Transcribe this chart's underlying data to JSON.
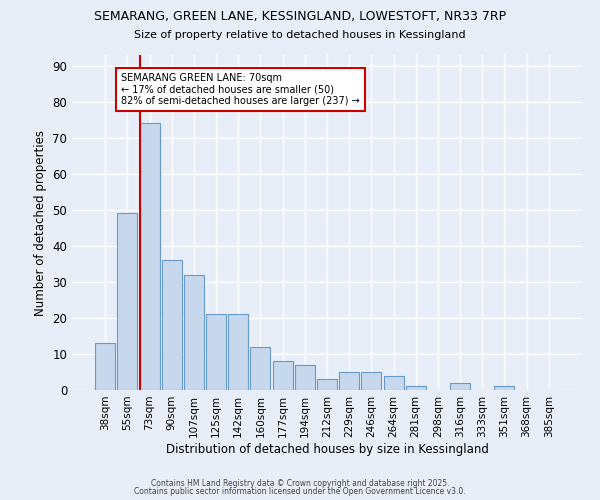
{
  "title_line1": "SEMARANG, GREEN LANE, KESSINGLAND, LOWESTOFT, NR33 7RP",
  "title_line2": "Size of property relative to detached houses in Kessingland",
  "xlabel": "Distribution of detached houses by size in Kessingland",
  "ylabel": "Number of detached properties",
  "categories": [
    "38sqm",
    "55sqm",
    "73sqm",
    "90sqm",
    "107sqm",
    "125sqm",
    "142sqm",
    "160sqm",
    "177sqm",
    "194sqm",
    "212sqm",
    "229sqm",
    "246sqm",
    "264sqm",
    "281sqm",
    "298sqm",
    "316sqm",
    "333sqm",
    "351sqm",
    "368sqm",
    "385sqm"
  ],
  "values": [
    13,
    49,
    74,
    36,
    32,
    21,
    21,
    12,
    8,
    7,
    3,
    5,
    5,
    4,
    1,
    0,
    2,
    0,
    1,
    0,
    0
  ],
  "bar_color": "#c8d8ec",
  "bar_edge_color": "#6699cc",
  "vline_x_index": 2,
  "vline_color": "#cc0000",
  "annotation_text": "SEMARANG GREEN LANE: 70sqm\n← 17% of detached houses are smaller (50)\n82% of semi-detached houses are larger (237) →",
  "annotation_box_color": "#ffffff",
  "annotation_box_edge_color": "#cc0000",
  "ylim": [
    0,
    93
  ],
  "yticks": [
    0,
    10,
    20,
    30,
    40,
    50,
    60,
    70,
    80,
    90
  ],
  "background_color": "#e8eef8",
  "grid_color": "#ffffff",
  "footer_line1": "Contains HM Land Registry data © Crown copyright and database right 2025.",
  "footer_line2": "Contains public sector information licensed under the Open Government Licence v3.0."
}
